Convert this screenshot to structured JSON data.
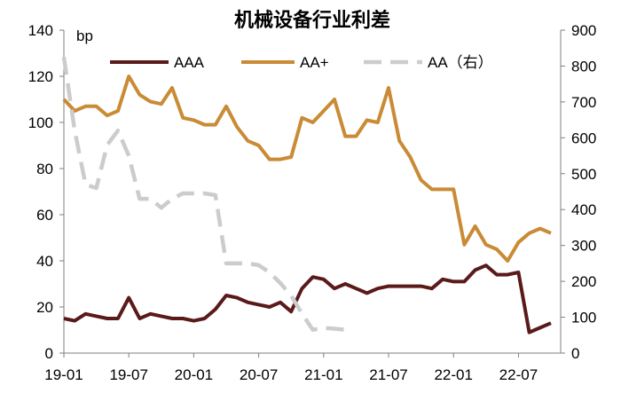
{
  "chart_data": {
    "type": "line",
    "title": "机械设备行业利差",
    "y_unit": "bp",
    "x_tick_labels": [
      "19-01",
      "19-07",
      "20-01",
      "20-07",
      "21-01",
      "21-07",
      "22-01",
      "22-07"
    ],
    "ylim_left": [
      0,
      140
    ],
    "yticks_left": [
      0,
      20,
      40,
      60,
      80,
      100,
      120,
      140
    ],
    "ylim_right": [
      0,
      900
    ],
    "yticks_right": [
      0,
      100,
      200,
      300,
      400,
      500,
      600,
      700,
      800,
      900
    ],
    "grid": false,
    "legend_position": "top",
    "series": [
      {
        "name": "AAA",
        "axis": "left",
        "color": "#5b1a1a",
        "dash": "solid",
        "x": [
          "19-01",
          "19-02",
          "19-03",
          "19-04",
          "19-05",
          "19-06",
          "19-07",
          "19-08",
          "19-09",
          "19-10",
          "19-11",
          "19-12",
          "20-01",
          "20-02",
          "20-03",
          "20-04",
          "20-05",
          "20-06",
          "20-07",
          "20-08",
          "20-09",
          "20-10",
          "20-11",
          "20-12",
          "21-01",
          "21-02",
          "21-03",
          "21-04",
          "21-05",
          "21-06",
          "21-07",
          "21-08",
          "21-09",
          "21-10",
          "21-11",
          "21-12",
          "22-01",
          "22-02",
          "22-03",
          "22-04",
          "22-05",
          "22-06",
          "22-07",
          "22-08",
          "22-09",
          "22-10"
        ],
        "values": [
          15,
          14,
          17,
          16,
          15,
          15,
          24,
          15,
          17,
          16,
          15,
          15,
          14,
          15,
          19,
          25,
          24,
          22,
          21,
          20,
          22,
          18,
          28,
          33,
          32,
          28,
          30,
          28,
          26,
          28,
          29,
          29,
          29,
          29,
          28,
          32,
          31,
          31,
          36,
          38,
          34,
          34,
          35,
          9,
          11,
          13
        ]
      },
      {
        "name": "AA+",
        "axis": "left",
        "color": "#c98b35",
        "dash": "solid",
        "x": [
          "19-01",
          "19-02",
          "19-03",
          "19-04",
          "19-05",
          "19-06",
          "19-07",
          "19-08",
          "19-09",
          "19-10",
          "19-11",
          "19-12",
          "20-01",
          "20-02",
          "20-03",
          "20-04",
          "20-05",
          "20-06",
          "20-07",
          "20-08",
          "20-09",
          "20-10",
          "20-11",
          "20-12",
          "21-01",
          "21-02",
          "21-03",
          "21-04",
          "21-05",
          "21-06",
          "21-07",
          "21-08",
          "21-09",
          "21-10",
          "21-11",
          "21-12",
          "22-01",
          "22-02",
          "22-03",
          "22-04",
          "22-05",
          "22-06",
          "22-07",
          "22-08",
          "22-09",
          "22-10"
        ],
        "values": [
          110,
          105,
          107,
          107,
          103,
          105,
          120,
          112,
          109,
          108,
          115,
          102,
          101,
          99,
          99,
          107,
          98,
          92,
          90,
          84,
          84,
          85,
          102,
          100,
          105,
          110,
          94,
          94,
          101,
          100,
          115,
          92,
          85,
          75,
          71,
          71,
          71,
          47,
          55,
          47,
          45,
          40,
          48,
          52,
          54,
          52
        ]
      },
      {
        "name": "AA（右）",
        "axis": "right",
        "color": "#cccccc",
        "dash": "dashed",
        "x": [
          "19-01",
          "19-02",
          "19-03",
          "19-04",
          "19-05",
          "19-06",
          "19-07",
          "19-08",
          "19-09",
          "19-10",
          "19-11",
          "19-12",
          "20-01",
          "20-02",
          "20-03",
          "20-04",
          "20-05",
          "20-06",
          "20-07",
          "20-08",
          "20-09",
          "20-10",
          "20-11",
          "20-12",
          "21-01",
          "21-02",
          "21-03"
        ],
        "values": [
          825,
          620,
          470,
          460,
          580,
          620,
          550,
          430,
          430,
          405,
          430,
          445,
          445,
          445,
          440,
          250,
          250,
          250,
          245,
          225,
          195,
          160,
          110,
          65,
          70,
          68,
          65
        ]
      }
    ]
  }
}
